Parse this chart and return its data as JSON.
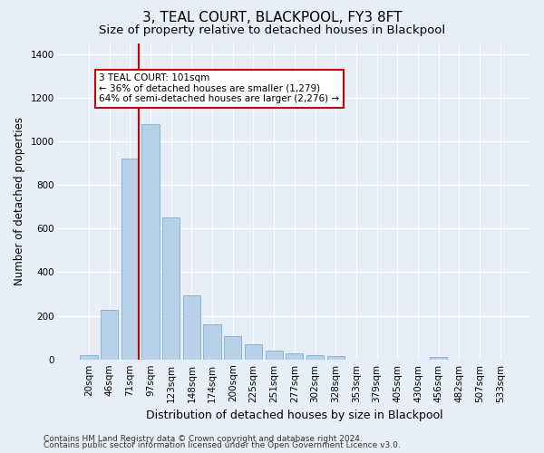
{
  "title": "3, TEAL COURT, BLACKPOOL, FY3 8FT",
  "subtitle": "Size of property relative to detached houses in Blackpool",
  "xlabel": "Distribution of detached houses by size in Blackpool",
  "ylabel": "Number of detached properties",
  "bar_labels": [
    "20sqm",
    "46sqm",
    "71sqm",
    "97sqm",
    "123sqm",
    "148sqm",
    "174sqm",
    "200sqm",
    "225sqm",
    "251sqm",
    "277sqm",
    "302sqm",
    "328sqm",
    "353sqm",
    "379sqm",
    "405sqm",
    "430sqm",
    "456sqm",
    "482sqm",
    "507sqm",
    "533sqm"
  ],
  "bar_values": [
    20,
    225,
    920,
    1080,
    650,
    295,
    160,
    105,
    70,
    40,
    28,
    20,
    15,
    0,
    0,
    0,
    0,
    10,
    0,
    0,
    0
  ],
  "bar_color": "#b8d0e8",
  "bar_edge_color": "#7aafd4",
  "ylim": [
    0,
    1450
  ],
  "yticks": [
    0,
    200,
    400,
    600,
    800,
    1000,
    1200,
    1400
  ],
  "red_line_color": "#cc0000",
  "annotation_text": "3 TEAL COURT: 101sqm\n← 36% of detached houses are smaller (1,279)\n64% of semi-detached houses are larger (2,276) →",
  "annotation_box_color": "#ffffff",
  "annotation_box_edge_color": "#cc0000",
  "footnote1": "Contains HM Land Registry data © Crown copyright and database right 2024.",
  "footnote2": "Contains public sector information licensed under the Open Government Licence v3.0.",
  "background_color": "#e8eef8",
  "plot_bg_color": "#e8eef8",
  "grid_color": "#ffffff",
  "title_fontsize": 11,
  "subtitle_fontsize": 9.5,
  "ylabel_fontsize": 8.5,
  "xlabel_fontsize": 9,
  "tick_fontsize": 7.5,
  "footnote_fontsize": 6.5,
  "annot_fontsize": 7.5
}
